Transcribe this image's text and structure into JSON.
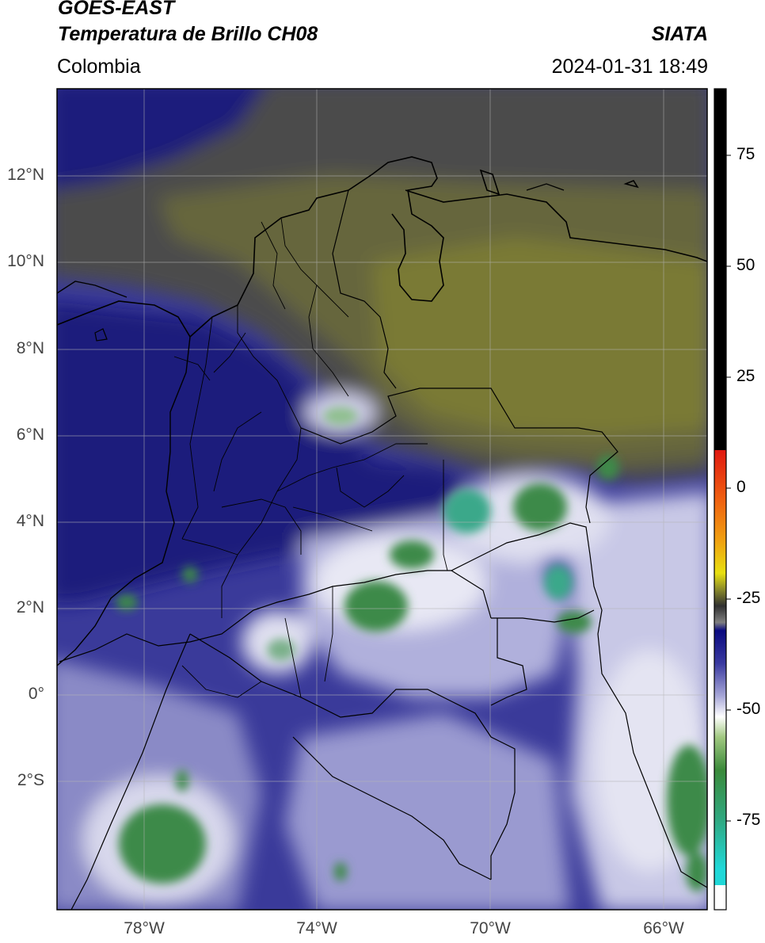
{
  "header": {
    "satellite": "GOES-EAST",
    "product": "Temperatura de Brillo CH08",
    "agency": "SIATA",
    "region": "Colombia",
    "datetime": "2024-01-31 18:49"
  },
  "map_axes": {
    "lat_labels": [
      "12°N",
      "10°N",
      "8°N",
      "6°N",
      "4°N",
      "2°N",
      "0°",
      "2°S"
    ],
    "lon_labels": [
      "78°W",
      "74°W",
      "70°W",
      "66°W"
    ],
    "grid": true
  },
  "colorbar": {
    "tick_labels": [
      "75",
      "50",
      "25",
      "0",
      "-25",
      "-50",
      "-75"
    ],
    "tick_values": [
      75,
      50,
      25,
      0,
      -25,
      -50,
      -75
    ],
    "range": [
      -95,
      90
    ],
    "colors": {
      "warm_top": "#000000",
      "red": "#e03010",
      "orange": "#f08a10",
      "yellow": "#e8e010",
      "olive": "#8a8a2a",
      "gray": "#505050",
      "navy": "#0a0a80",
      "blue": "#3a3aa0",
      "lavender": "#a8a8d8",
      "white": "#ffffff",
      "green_light": "#a0c880",
      "green": "#3a8a3a",
      "teal": "#30b090",
      "cyan": "#20d8d8"
    }
  },
  "image_colors": {
    "olive": "#6e6e3a",
    "gray": "#4c4c4c",
    "navy": "#1a1a7a",
    "blue": "#3a3a9a",
    "lavender": "#9a9ad0",
    "white": "#e8e8f4",
    "green": "#3c8a4a",
    "teal": "#3aa88a"
  }
}
